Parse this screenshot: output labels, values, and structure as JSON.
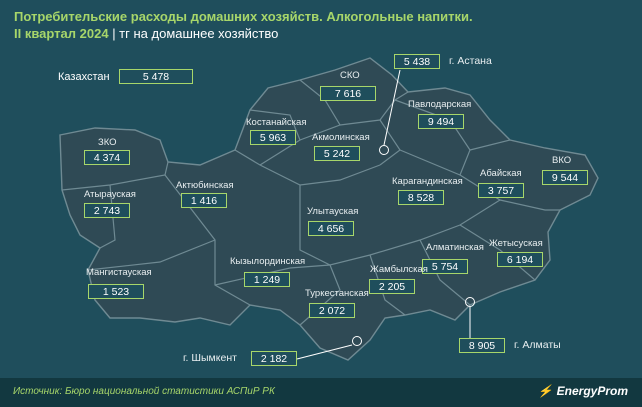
{
  "header": {
    "title_line1": "Потребительские расходы домашних хозяйств. Алкогольные напитки.",
    "title_line2_main": "II квартал 2024",
    "title_line2_sub": "| тг на домашнее хозяйство"
  },
  "country": {
    "label": "Казахстан",
    "value": "5 478"
  },
  "regions": [
    {
      "name": "СКО",
      "value": "7 616"
    },
    {
      "name": "г. Астана",
      "value": "5 438"
    },
    {
      "name": "Павлодарская",
      "value": "9 494"
    },
    {
      "name": "Костанайская",
      "value": "5 963"
    },
    {
      "name": "Акмолинская",
      "value": "5 242"
    },
    {
      "name": "ЗКО",
      "value": "4 374"
    },
    {
      "name": "Атырауская",
      "value": "2 743"
    },
    {
      "name": "Актюбинская",
      "value": "1 416"
    },
    {
      "name": "ВКО",
      "value": "9 544"
    },
    {
      "name": "Абайская",
      "value": "3 757"
    },
    {
      "name": "Карагандинская",
      "value": "8 528"
    },
    {
      "name": "Улытауская",
      "value": "4 656"
    },
    {
      "name": "Мангистауская",
      "value": "1 523"
    },
    {
      "name": "Кызылординская",
      "value": "1 249"
    },
    {
      "name": "Алматинская",
      "value": "5 754"
    },
    {
      "name": "Жетысуская",
      "value": "6 194"
    },
    {
      "name": "Жамбылская",
      "value": "2 205"
    },
    {
      "name": "Туркестанская",
      "value": "2 072"
    },
    {
      "name": "г. Шымкент",
      "value": "2 182"
    },
    {
      "name": "г. Алматы",
      "value": "8 905"
    }
  ],
  "footer": {
    "source": "Источник: Бюро национальной статистики АСПиР РК",
    "brand": "EnergyProm"
  },
  "colors": {
    "background": "#1f4e5c",
    "map_fill": "#2f4a55",
    "border": "#6f8a93",
    "accent": "#a7d66a",
    "footer": "#123840"
  }
}
